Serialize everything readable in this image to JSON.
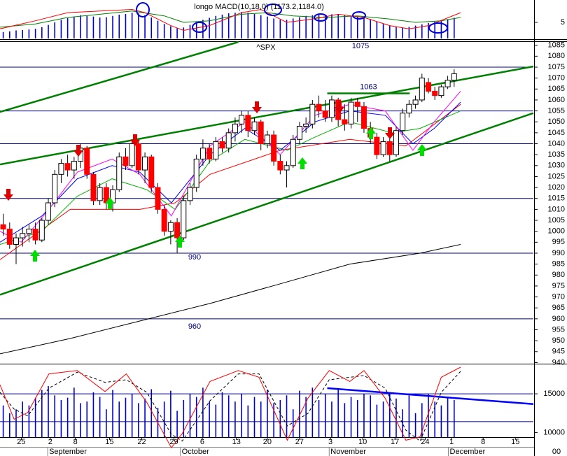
{
  "chart_data": [
    {
      "type": "bar",
      "title": "longo MACD(10,18,0) (1173.2,1184.0)",
      "color": "#0000cc",
      "xlim": [
        -0.5,
        82.3
      ],
      "ylim": [
        0,
        11.5
      ],
      "yticks": [
        5
      ],
      "x": [
        0,
        1,
        2,
        3,
        4,
        5,
        6,
        7,
        8,
        9,
        10,
        11,
        12,
        13,
        14,
        15,
        16,
        17,
        18,
        19,
        20,
        21,
        22,
        23,
        24,
        25,
        26,
        27,
        28,
        29,
        30,
        31,
        32,
        33,
        34,
        35,
        36,
        37,
        38,
        39,
        40,
        41,
        42,
        43,
        44,
        45,
        46,
        47,
        48,
        49,
        50,
        51,
        52,
        53,
        54,
        55,
        56,
        57,
        58,
        59,
        60,
        61,
        62,
        63,
        64,
        65,
        66,
        67,
        68,
        69,
        70
      ],
      "values": [
        2.0,
        2.2,
        2.5,
        2.6,
        2.8,
        3.0,
        3.5,
        4.2,
        5.0,
        5.8,
        6.3,
        6.8,
        7.2,
        7.0,
        6.8,
        6.5,
        6.6,
        7.0,
        7.4,
        7.6,
        8.0,
        7.8,
        7.2,
        6.5,
        5.5,
        4.5,
        3.8,
        3.2,
        3.4,
        4.2,
        5.0,
        5.8,
        6.4,
        7.0,
        7.4,
        7.8,
        8.0,
        8.2,
        8.0,
        7.6,
        7.2,
        6.8,
        6.2,
        5.8,
        5.8,
        6.2,
        6.6,
        7.0,
        7.2,
        7.3,
        7.4,
        7.5,
        7.4,
        7.3,
        7.0,
        6.8,
        6.5,
        6.0,
        5.2,
        4.5,
        4.0,
        3.6,
        3.4,
        3.6,
        4.0,
        4.4,
        4.8,
        5.2,
        5.6,
        6.0,
        6.4
      ],
      "series": [
        {
          "color": "#008000",
          "x": [
            -0.5,
            5,
            10,
            15,
            20,
            25,
            28,
            32,
            37,
            41,
            45,
            50,
            55,
            60,
            64,
            68,
            71
          ],
          "values": [
            3.5,
            4.5,
            6.5,
            7.5,
            8.5,
            7,
            5,
            5.5,
            7.5,
            8,
            7,
            6.5,
            7,
            6,
            5,
            5.5,
            6.5
          ]
        },
        {
          "color": "#ff0000",
          "x": [
            -0.5,
            5,
            10,
            15,
            20,
            22,
            26,
            28,
            32,
            37,
            40,
            44,
            48,
            52,
            56,
            60,
            63,
            66,
            71
          ],
          "values": [
            3,
            5.5,
            8,
            8.5,
            9,
            8,
            4,
            2.5,
            4,
            8,
            9,
            5,
            6,
            7.5,
            6.5,
            4,
            3,
            4,
            8
          ]
        }
      ]
    },
    {
      "type": "candlestick",
      "subtitle": "^SPX",
      "up_color": "#ffffff",
      "down_color": "#ff0000",
      "xlim": [
        -0.5,
        82.3
      ],
      "ylim": [
        939.5,
        1086.5
      ],
      "yticks": [
        940,
        945,
        950,
        955,
        960,
        965,
        970,
        975,
        980,
        985,
        990,
        995,
        1000,
        1005,
        1010,
        1015,
        1020,
        1025,
        1030,
        1035,
        1040,
        1045,
        1050,
        1055,
        1060,
        1065,
        1070,
        1075,
        1080,
        1085
      ],
      "x": [
        0,
        1,
        2,
        3,
        4,
        5,
        6,
        7,
        8,
        9,
        10,
        11,
        12,
        13,
        14,
        15,
        16,
        17,
        18,
        19,
        20,
        21,
        22,
        23,
        24,
        25,
        26,
        27,
        28,
        29,
        30,
        31,
        32,
        33,
        34,
        35,
        36,
        37,
        38,
        39,
        40,
        41,
        42,
        43,
        44,
        45,
        46,
        47,
        48,
        49,
        50,
        51,
        52,
        53,
        54,
        55,
        56,
        57,
        58,
        59,
        60,
        61,
        62,
        63,
        64,
        65,
        66,
        67,
        68,
        69,
        70
      ],
      "open": [
        1003,
        1001,
        994,
        997,
        999,
        1001,
        996,
        1005,
        1013,
        1026,
        1031,
        1028,
        1032,
        1038,
        1026,
        1014,
        1020,
        1013,
        1019,
        1034,
        1030,
        1040,
        1028,
        1034,
        1020,
        1010,
        1000,
        1004,
        997,
        1014,
        1020,
        1033,
        1038,
        1033,
        1041,
        1038,
        1045,
        1049,
        1053,
        1046,
        1050,
        1040,
        1044,
        1032,
        1028,
        1030,
        1042,
        1048,
        1049,
        1058,
        1055,
        1052,
        1060,
        1051,
        1049,
        1059,
        1057,
        1047,
        1043,
        1035,
        1041,
        1035,
        1046,
        1054,
        1058,
        1060,
        1068,
        1064,
        1062,
        1066,
        1069
      ],
      "high": [
        1008,
        1004,
        999,
        1002,
        1003,
        1004,
        1006,
        1015,
        1028,
        1033,
        1035,
        1034,
        1040,
        1039,
        1027,
        1022,
        1022,
        1021,
        1036,
        1038,
        1042,
        1041,
        1036,
        1035,
        1022,
        1012,
        1005,
        1006,
        1016,
        1022,
        1035,
        1042,
        1040,
        1043,
        1043,
        1047,
        1052,
        1055,
        1055,
        1052,
        1051,
        1046,
        1046,
        1035,
        1032,
        1044,
        1050,
        1052,
        1060,
        1062,
        1060,
        1062,
        1061,
        1058,
        1061,
        1061,
        1059,
        1050,
        1045,
        1043,
        1044,
        1048,
        1056,
        1060,
        1062,
        1072,
        1070,
        1066,
        1067,
        1071,
        1074
      ],
      "low": [
        998,
        992,
        985,
        993,
        995,
        994,
        995,
        1003,
        1011,
        1022,
        1025,
        1024,
        1029,
        1024,
        1012,
        1012,
        1010,
        1009,
        1018,
        1028,
        1029,
        1026,
        1022,
        1018,
        1008,
        998,
        994,
        990,
        996,
        1012,
        1018,
        1030,
        1031,
        1032,
        1036,
        1036,
        1041,
        1045,
        1043,
        1044,
        1037,
        1038,
        1030,
        1026,
        1020,
        1029,
        1040,
        1045,
        1047,
        1052,
        1050,
        1050,
        1048,
        1046,
        1047,
        1050,
        1045,
        1040,
        1033,
        1034,
        1032,
        1034,
        1044,
        1052,
        1056,
        1059,
        1063,
        1060,
        1061,
        1065,
        1066
      ],
      "close": [
        1001,
        994,
        997,
        999,
        1001,
        996,
        1005,
        1013,
        1026,
        1031,
        1028,
        1032,
        1038,
        1026,
        1014,
        1020,
        1013,
        1019,
        1034,
        1030,
        1040,
        1028,
        1034,
        1020,
        1010,
        1000,
        1004,
        997,
        1014,
        1020,
        1033,
        1038,
        1033,
        1041,
        1038,
        1045,
        1049,
        1053,
        1046,
        1050,
        1040,
        1044,
        1032,
        1028,
        1030,
        1042,
        1048,
        1049,
        1058,
        1055,
        1052,
        1060,
        1051,
        1049,
        1059,
        1057,
        1047,
        1043,
        1035,
        1041,
        1035,
        1046,
        1054,
        1058,
        1060,
        1070,
        1064,
        1062,
        1066,
        1069,
        1072
      ],
      "series": [
        {
          "color": "#000000",
          "x": [
            -0.5,
            10.4,
            21.2,
            32.1,
            43,
            53.8,
            64.7,
            71
          ],
          "values": [
            944,
            951,
            959,
            967,
            976,
            985,
            990,
            994
          ]
        },
        {
          "color": "#ff0000",
          "x": [
            -0.5,
            10.4,
            21.2,
            26.7,
            32.1,
            43,
            53.8,
            62.5,
            71
          ],
          "values": [
            987,
            1010,
            1010,
            1013,
            1026,
            1037,
            1042,
            1039,
            1058
          ]
        },
        {
          "color": "#00b000",
          "x": [
            -0.5,
            6,
            11.5,
            16.9,
            22.3,
            26.7,
            32.1,
            37.5,
            44.1,
            48.4,
            53.8,
            60.4,
            64.7,
            71
          ],
          "values": [
            994,
            1000,
            1016,
            1024,
            1019,
            1010,
            1032,
            1042,
            1037,
            1043,
            1050,
            1045,
            1047,
            1055
          ]
        },
        {
          "color": "#0000ff",
          "x": [
            -0.5,
            6,
            11.5,
            16.9,
            21.2,
            26.1,
            32.1,
            37.5,
            43,
            48.4,
            53.8,
            59.3,
            63.6,
            66.9,
            71
          ],
          "values": [
            995,
            1007,
            1024,
            1030,
            1027,
            1013,
            1035,
            1047,
            1037,
            1050,
            1055,
            1053,
            1040,
            1047,
            1059
          ]
        },
        {
          "color": "#ff00ff",
          "x": [
            -0.5,
            2.8,
            7.1,
            11.5,
            16.9,
            21.2,
            26.1,
            32.1,
            37.5,
            43,
            48.4,
            53.8,
            59.3,
            63.6,
            66.9,
            71
          ],
          "values": [
            1000,
            995,
            1010,
            1027,
            1033,
            1026,
            1007,
            1039,
            1050,
            1035,
            1053,
            1058,
            1055,
            1037,
            1050,
            1064
          ]
        }
      ],
      "trendline_color": "#008000",
      "trendlines": [
        {
          "x": [
            -0.5,
            36.5
          ],
          "y": [
            1054.5,
            1086.5
          ]
        },
        {
          "x": [
            -0.5,
            82.3
          ],
          "y": [
            1030.5,
            1075.3
          ]
        },
        {
          "x": [
            -0.5,
            82.3
          ],
          "y": [
            971,
            1054
          ]
        },
        {
          "x": [
            50.3,
            63.1
          ],
          "y": [
            1063,
            1063
          ],
          "label": "1063"
        }
      ],
      "level_color": "#000080",
      "levels": [
        {
          "value": 1075,
          "label": "1075"
        },
        {
          "value": 1055
        },
        {
          "value": 1040
        },
        {
          "value": 1015
        },
        {
          "value": 990,
          "label": "990"
        },
        {
          "value": 960,
          "label": "960"
        }
      ]
    },
    {
      "type": "bar",
      "color": "#0000cc",
      "xlim": [
        -0.5,
        82.3
      ],
      "ylim": [
        9400,
        18900
      ],
      "yticks": [
        15000,
        10000
      ],
      "unit_label": "00",
      "reference_lines": [
        15000,
        11400
      ],
      "level_color": "#000080",
      "x": [
        0,
        1,
        2,
        3,
        4,
        5,
        6,
        7,
        8,
        9,
        10,
        11,
        12,
        13,
        14,
        15,
        16,
        17,
        18,
        19,
        20,
        21,
        22,
        23,
        24,
        25,
        26,
        27,
        28,
        29,
        30,
        31,
        32,
        33,
        34,
        35,
        36,
        37,
        38,
        39,
        40,
        41,
        42,
        43,
        44,
        45,
        46,
        47,
        48,
        49,
        50,
        51,
        52,
        53,
        54,
        55,
        56,
        57,
        58,
        59,
        60,
        61,
        62,
        63,
        64,
        65,
        66,
        67,
        68,
        69,
        70
      ],
      "values": [
        13500,
        12500,
        13000,
        14000,
        13500,
        14500,
        15500,
        16000,
        14800,
        14200,
        14500,
        15800,
        13800,
        14000,
        15200,
        14600,
        13000,
        15500,
        14000,
        14500,
        15000,
        13800,
        14400,
        15600,
        13200,
        14000,
        15400,
        12800,
        14200,
        15000,
        14600,
        15800,
        14000,
        13600,
        15200,
        14800,
        14000,
        15000,
        13500,
        14600,
        14000,
        15500,
        13800,
        14200,
        14800,
        13000,
        15400,
        14600,
        15800,
        14200,
        15000,
        14000,
        15600,
        13800,
        14600,
        14200,
        15000,
        14800,
        13600,
        14000,
        15200,
        14400,
        13000,
        14800,
        12500,
        13800,
        15000,
        14000,
        13500,
        14600,
        14200
      ],
      "y2lim": [
        0,
        100
      ],
      "series": [
        {
          "color": "#000000",
          "dash": true,
          "axis": "y2",
          "x": [
            -0.5,
            1.7,
            3.8,
            7.1,
            11.5,
            15.8,
            19.1,
            22.3,
            26.1,
            27.8,
            32.1,
            36.5,
            39.7,
            44.1,
            47.3,
            50.6,
            53.8,
            56,
            59.3,
            62.5,
            64.7,
            68,
            71
          ],
          "values": [
            70,
            50,
            42,
            75,
            94,
            82,
            85,
            70,
            20,
            12,
            60,
            92,
            92,
            30,
            45,
            85,
            88,
            90,
            75,
            25,
            12,
            70,
            95
          ]
        },
        {
          "color": "#ff0000",
          "axis": "y2",
          "x": [
            -0.5,
            1.7,
            3.8,
            7.1,
            11.5,
            15.8,
            19.1,
            22.3,
            26.1,
            27.8,
            32.1,
            36.5,
            39.7,
            44.1,
            47.3,
            50.6,
            53.8,
            56,
            59.3,
            62.5,
            64.7,
            68,
            71
          ],
          "values": [
            79,
            38,
            46,
            92,
            96,
            71,
            92,
            58,
            4,
            21,
            83,
            96,
            88,
            13,
            63,
            96,
            83,
            96,
            63,
            13,
            17,
            88,
            100
          ]
        }
      ],
      "trendline_color": "#0000ff",
      "trendlines": [
        {
          "x": [
            50.3,
            82.3
          ],
          "y": [
            75,
            56
          ],
          "axis": "y2"
        }
      ],
      "xticks": [
        {
          "value": 2.8,
          "label": "25"
        },
        {
          "value": 7.3,
          "label": "2"
        },
        {
          "value": 11.2,
          "label": "8"
        },
        {
          "value": 16.5,
          "label": "15"
        },
        {
          "value": 21.5,
          "label": "22"
        },
        {
          "value": 26.5,
          "label": "29"
        },
        {
          "value": 30.9,
          "label": "6"
        },
        {
          "value": 36.2,
          "label": "13"
        },
        {
          "value": 41,
          "label": "20"
        },
        {
          "value": 46,
          "label": "27"
        },
        {
          "value": 50.8,
          "label": "3"
        },
        {
          "value": 55.8,
          "label": "10"
        },
        {
          "value": 60.8,
          "label": "17"
        },
        {
          "value": 65.5,
          "label": "24"
        },
        {
          "value": 69.6,
          "label": "1"
        },
        {
          "value": 74.5,
          "label": "8"
        },
        {
          "value": 79.5,
          "label": "15"
        }
      ],
      "months": [
        {
          "value": 6.9,
          "label": "September"
        },
        {
          "value": 27.5,
          "label": "October"
        },
        {
          "value": 50.6,
          "label": "November"
        },
        {
          "value": 69.1,
          "label": "December"
        }
      ]
    }
  ]
}
